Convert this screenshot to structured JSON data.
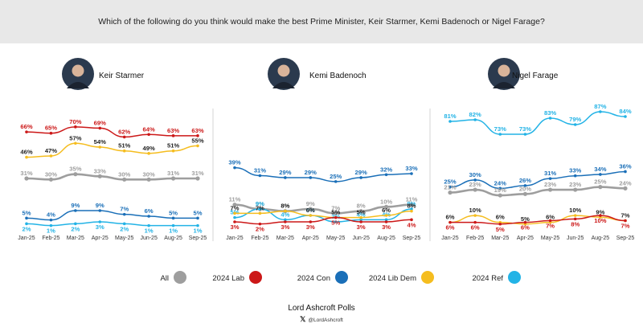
{
  "question": "Which of the following do you think would make the best Prime Minister, Keir Starmer, Kemi Badenoch or Nigel Farage?",
  "footer": {
    "title": "Lord Ashcroft Polls",
    "handle": "@LordAshcroft",
    "x_icon": "x-logo-icon"
  },
  "colors": {
    "All": "#9e9e9e",
    "2024 Lab": "#cc1818",
    "2024 Con": "#1a6fb8",
    "2024 Lib Dem": "#f5bd1f",
    "2024 Ref": "#23b3e6"
  },
  "legend": [
    {
      "name": "All",
      "color": "#9e9e9e"
    },
    {
      "name": "2024 Lab",
      "color": "#cc1818"
    },
    {
      "name": "2024 Con",
      "color": "#1a6fb8"
    },
    {
      "name": "2024 Lib Dem",
      "color": "#f5bd1f"
    },
    {
      "name": "2024 Ref",
      "color": "#23b3e6"
    }
  ],
  "chart_data": [
    {
      "type": "line",
      "title": "Keir Starmer",
      "avatar": "portrait-keir-starmer",
      "x": [
        "Jan-25",
        "Feb-25",
        "Mar-25",
        "Apr-25",
        "May-25",
        "Jun-25",
        "Aug-25",
        "Sep-25"
      ],
      "series": [
        {
          "name": "2024 Lab",
          "values": [
            66,
            65,
            70,
            69,
            62,
            64,
            63,
            63
          ]
        },
        {
          "name": "2024 Lib Dem",
          "values": [
            46,
            47,
            57,
            54,
            51,
            49,
            51,
            55
          ]
        },
        {
          "name": "All",
          "values": [
            31,
            30,
            35,
            33,
            30,
            30,
            31,
            31
          ]
        },
        {
          "name": "2024 Con",
          "values": [
            5,
            4,
            9,
            9,
            7,
            6,
            5,
            5
          ]
        },
        {
          "name": "2024 Ref",
          "values": [
            2,
            1,
            2,
            3,
            2,
            1,
            1,
            1
          ]
        }
      ]
    },
    {
      "type": "line",
      "title": "Kemi Badenoch",
      "avatar": "portrait-kemi-badenoch",
      "x": [
        "Jan-25",
        "Feb-25",
        "Mar-25",
        "Apr-25",
        "May-25",
        "Jun-25",
        "Aug-25",
        "Sep-25"
      ],
      "series": [
        {
          "name": "2024 Con",
          "values": [
            39,
            31,
            29,
            29,
            25,
            29,
            32,
            33
          ]
        },
        {
          "name": "All",
          "values": [
            11,
            9,
            8,
            9,
            7,
            8,
            10,
            11
          ]
        },
        {
          "name": "2024 Ref",
          "values": [
            5,
            9,
            4,
            6,
            3,
            4,
            4,
            9
          ]
        },
        {
          "name": "2024 Lib Dem",
          "values": [
            7,
            7,
            8,
            6,
            5,
            5,
            6,
            8
          ]
        },
        {
          "name": "2024 Lab",
          "values": [
            3,
            2,
            3,
            3,
            5,
            3,
            3,
            4
          ]
        }
      ]
    },
    {
      "type": "line",
      "title": "Nigel Farage",
      "avatar": "portrait-nigel-farage",
      "x": [
        "Jan-25",
        "Feb-25",
        "Mar-25",
        "Apr-25",
        "May-25",
        "Jun-25",
        "Aug-25",
        "Sep-25"
      ],
      "series": [
        {
          "name": "2024 Ref",
          "values": [
            81,
            82,
            73,
            73,
            83,
            79,
            87,
            84
          ]
        },
        {
          "name": "2024 Con",
          "values": [
            25,
            30,
            24,
            26,
            31,
            33,
            34,
            36
          ]
        },
        {
          "name": "All",
          "values": [
            21,
            23,
            19,
            20,
            23,
            23,
            25,
            24
          ]
        },
        {
          "name": "2024 Lib Dem",
          "values": [
            6,
            10,
            6,
            5,
            6,
            10,
            9,
            7
          ]
        },
        {
          "name": "2024 Lab",
          "values": [
            6,
            6,
            5,
            6,
            7,
            8,
            10,
            7
          ]
        }
      ]
    }
  ]
}
